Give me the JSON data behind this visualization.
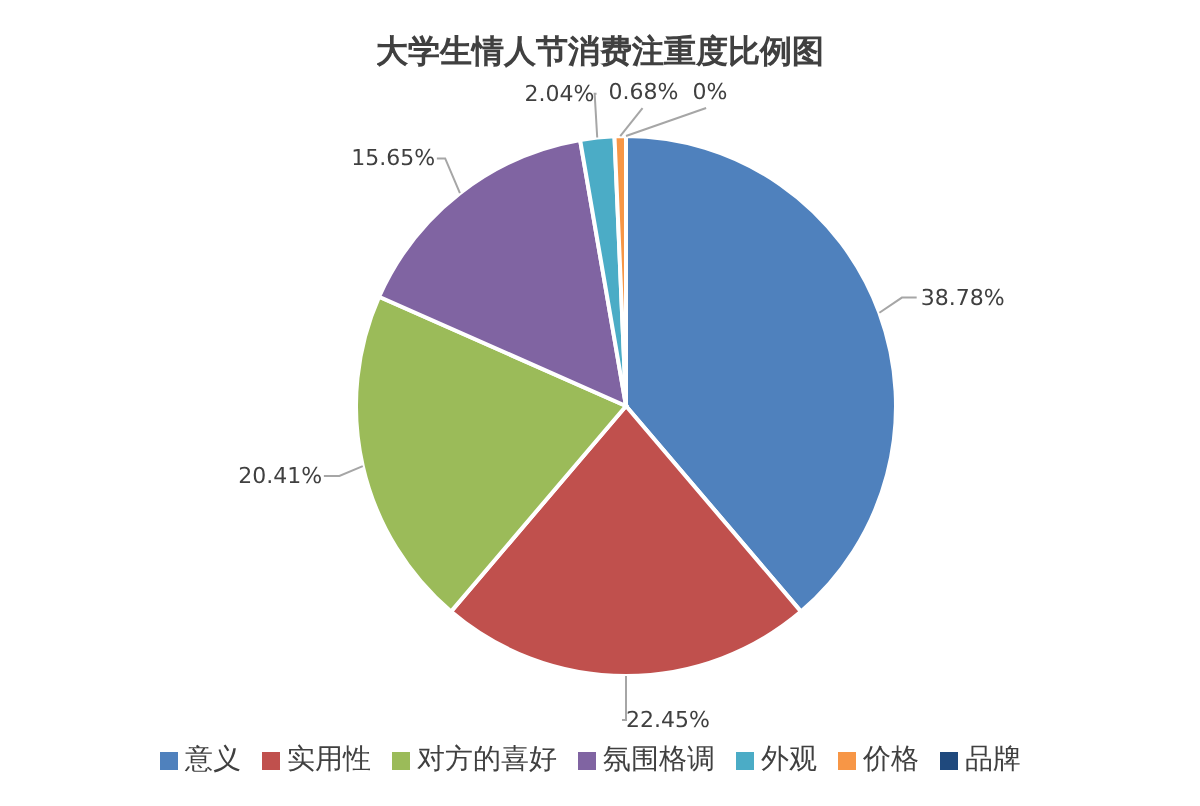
{
  "chart_data": {
    "type": "pie",
    "title": "大学生情人节消费注重度比例图",
    "categories": [
      "意义",
      "实用性",
      "对方的喜好",
      "氛围格调",
      "外观",
      "价格",
      "品牌"
    ],
    "values": [
      38.78,
      22.45,
      20.41,
      15.65,
      2.04,
      0.68,
      0
    ],
    "value_labels": [
      "38.78%",
      "22.45%",
      "20.41%",
      "15.65%",
      "2.04%",
      "0.68%",
      "0%"
    ],
    "colors": [
      "#4f81bd",
      "#c0504d",
      "#9bbb59",
      "#8064a2",
      "#4bacc6",
      "#f79646",
      "#1f497d"
    ],
    "legend": "bottom"
  }
}
